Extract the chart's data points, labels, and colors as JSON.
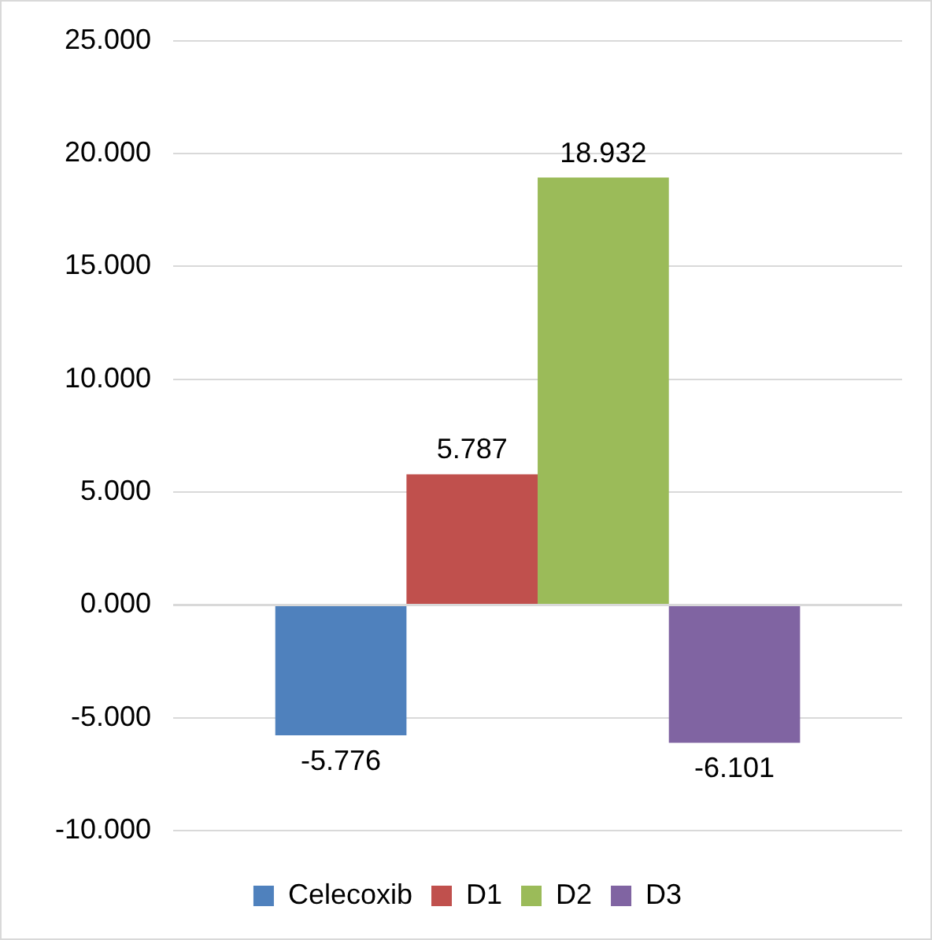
{
  "chart_data": {
    "type": "bar",
    "categories": [
      null
    ],
    "series": [
      {
        "name": "Celecoxib",
        "color": "#4f81bd",
        "values": [
          -5.776
        ]
      },
      {
        "name": "D1",
        "color": "#c0504d",
        "values": [
          5.787
        ]
      },
      {
        "name": "D2",
        "color": "#9bbb59",
        "values": [
          18.932
        ]
      },
      {
        "name": "D3",
        "color": "#8064a2",
        "values": [
          -6.101
        ]
      }
    ],
    "ylim": [
      -10,
      25
    ],
    "yticks": [
      {
        "value": -10,
        "label": "-10.000"
      },
      {
        "value": -5,
        "label": "-5.000"
      },
      {
        "value": 0,
        "label": "0.000"
      },
      {
        "value": 5,
        "label": "5.000"
      },
      {
        "value": 10,
        "label": "10.000"
      },
      {
        "value": 15,
        "label": "15.000"
      },
      {
        "value": 20,
        "label": "20.000"
      },
      {
        "value": 25,
        "label": "25.000"
      }
    ],
    "grid": "y",
    "legend": "bottom",
    "data_labels": true
  }
}
